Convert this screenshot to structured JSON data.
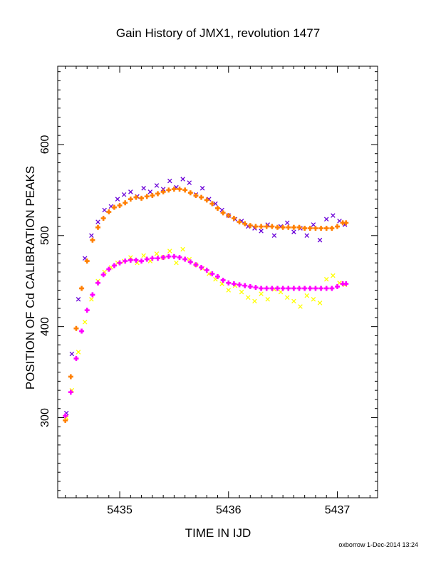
{
  "chart_data": {
    "type": "scatter",
    "title": "Gain History of JMX1, revolution 1477",
    "xlabel": "TIME IN IJD",
    "ylabel": "POSITION OF Cd CALIBRATION PEAKS",
    "xlim": [
      5434.43,
      5437.37
    ],
    "ylim": [
      212,
      686
    ],
    "x_ticks": [
      5435,
      5436,
      5437
    ],
    "x_tick_labels": [
      "5435",
      "5436",
      "5437"
    ],
    "y_ticks": [
      300,
      400,
      500,
      600
    ],
    "y_tick_labels": [
      "300",
      "400",
      "500",
      "600"
    ],
    "grid": false,
    "legend": "none",
    "footer": "oxborrow 1-Dec-2014 13:24",
    "colors": {
      "upper_points": "#6a00d8",
      "upper_fit": "#ff7f00",
      "lower_points": "#ffff00",
      "lower_fit": "#ff00ff"
    },
    "series": [
      {
        "marker": "x",
        "color": "#6a00d8",
        "x": [
          5434.51,
          5434.56,
          5434.62,
          5434.68,
          5434.74,
          5434.8,
          5434.86,
          5434.92,
          5434.98,
          5435.04,
          5435.1,
          5435.16,
          5435.22,
          5435.28,
          5435.34,
          5435.4,
          5435.46,
          5435.52,
          5435.58,
          5435.64,
          5435.7,
          5435.76,
          5435.82,
          5435.88,
          5435.94,
          5436.0,
          5436.06,
          5436.12,
          5436.18,
          5436.24,
          5436.3,
          5436.36,
          5436.42,
          5436.48,
          5436.54,
          5436.6,
          5436.66,
          5436.72,
          5436.78,
          5436.84,
          5436.9,
          5436.96,
          5437.02,
          5437.07
        ],
        "y": [
          305,
          370,
          430,
          475,
          500,
          515,
          528,
          532,
          540,
          545,
          548,
          543,
          552,
          548,
          555,
          551,
          560,
          553,
          562,
          558,
          545,
          552,
          540,
          535,
          528,
          522,
          518,
          516,
          510,
          508,
          505,
          512,
          500,
          510,
          514,
          504,
          508,
          500,
          512,
          495,
          518,
          522,
          516,
          512
        ]
      },
      {
        "marker": "+",
        "color": "#ff7f00",
        "x": [
          5434.5,
          5434.55,
          5434.6,
          5434.65,
          5434.7,
          5434.75,
          5434.8,
          5434.85,
          5434.9,
          5434.95,
          5435.0,
          5435.05,
          5435.1,
          5435.15,
          5435.2,
          5435.25,
          5435.3,
          5435.35,
          5435.4,
          5435.45,
          5435.5,
          5435.55,
          5435.6,
          5435.65,
          5435.7,
          5435.75,
          5435.8,
          5435.85,
          5435.9,
          5435.95,
          5436.0,
          5436.05,
          5436.1,
          5436.15,
          5436.2,
          5436.25,
          5436.3,
          5436.35,
          5436.4,
          5436.45,
          5436.5,
          5436.55,
          5436.6,
          5436.65,
          5436.7,
          5436.75,
          5436.8,
          5436.85,
          5436.9,
          5436.95,
          5437.0,
          5437.05,
          5437.08
        ],
        "y": [
          297,
          345,
          398,
          442,
          472,
          495,
          509,
          519,
          526,
          531,
          533,
          536,
          540,
          542,
          541,
          543,
          544,
          546,
          548,
          550,
          551,
          551,
          550,
          547,
          544,
          542,
          539,
          535,
          530,
          525,
          522,
          519,
          515,
          513,
          511,
          510,
          510,
          510,
          510,
          509,
          509,
          509,
          509,
          509,
          508,
          508,
          508,
          508,
          508,
          508,
          510,
          514,
          514
        ]
      },
      {
        "marker": "x",
        "color": "#ffff00",
        "x": [
          5434.51,
          5434.56,
          5434.62,
          5434.68,
          5434.74,
          5434.8,
          5434.86,
          5434.92,
          5434.98,
          5435.04,
          5435.1,
          5435.16,
          5435.22,
          5435.28,
          5435.34,
          5435.4,
          5435.46,
          5435.52,
          5435.58,
          5435.64,
          5435.7,
          5435.76,
          5435.82,
          5435.88,
          5435.94,
          5436.0,
          5436.06,
          5436.12,
          5436.18,
          5436.24,
          5436.3,
          5436.36,
          5436.42,
          5436.48,
          5436.54,
          5436.6,
          5436.66,
          5436.72,
          5436.78,
          5436.84,
          5436.9,
          5436.96,
          5437.02,
          5437.07
        ],
        "y": [
          300,
          330,
          372,
          405,
          430,
          450,
          460,
          465,
          470,
          472,
          476,
          470,
          478,
          472,
          480,
          476,
          483,
          470,
          485,
          474,
          468,
          464,
          458,
          452,
          447,
          440,
          445,
          438,
          432,
          428,
          436,
          430,
          441,
          438,
          432,
          428,
          422,
          434,
          430,
          426,
          452,
          456,
          448,
          446
        ]
      },
      {
        "marker": "+",
        "color": "#ff00ff",
        "x": [
          5434.5,
          5434.55,
          5434.6,
          5434.65,
          5434.7,
          5434.75,
          5434.8,
          5434.85,
          5434.9,
          5434.95,
          5435.0,
          5435.05,
          5435.1,
          5435.15,
          5435.2,
          5435.25,
          5435.3,
          5435.35,
          5435.4,
          5435.45,
          5435.5,
          5435.55,
          5435.6,
          5435.65,
          5435.7,
          5435.75,
          5435.8,
          5435.85,
          5435.9,
          5435.95,
          5436.0,
          5436.05,
          5436.1,
          5436.15,
          5436.2,
          5436.25,
          5436.3,
          5436.35,
          5436.4,
          5436.45,
          5436.5,
          5436.55,
          5436.6,
          5436.65,
          5436.7,
          5436.75,
          5436.8,
          5436.85,
          5436.9,
          5436.95,
          5437.0,
          5437.05,
          5437.08
        ],
        "y": [
          302,
          328,
          365,
          395,
          418,
          435,
          448,
          457,
          463,
          467,
          470,
          472,
          473,
          473,
          472,
          474,
          475,
          475,
          476,
          477,
          477,
          476,
          474,
          471,
          468,
          465,
          462,
          458,
          455,
          451,
          448,
          447,
          446,
          445,
          444,
          443,
          442,
          442,
          442,
          442,
          442,
          442,
          442,
          442,
          442,
          442,
          442,
          442,
          442,
          442,
          444,
          447,
          447
        ]
      }
    ]
  }
}
